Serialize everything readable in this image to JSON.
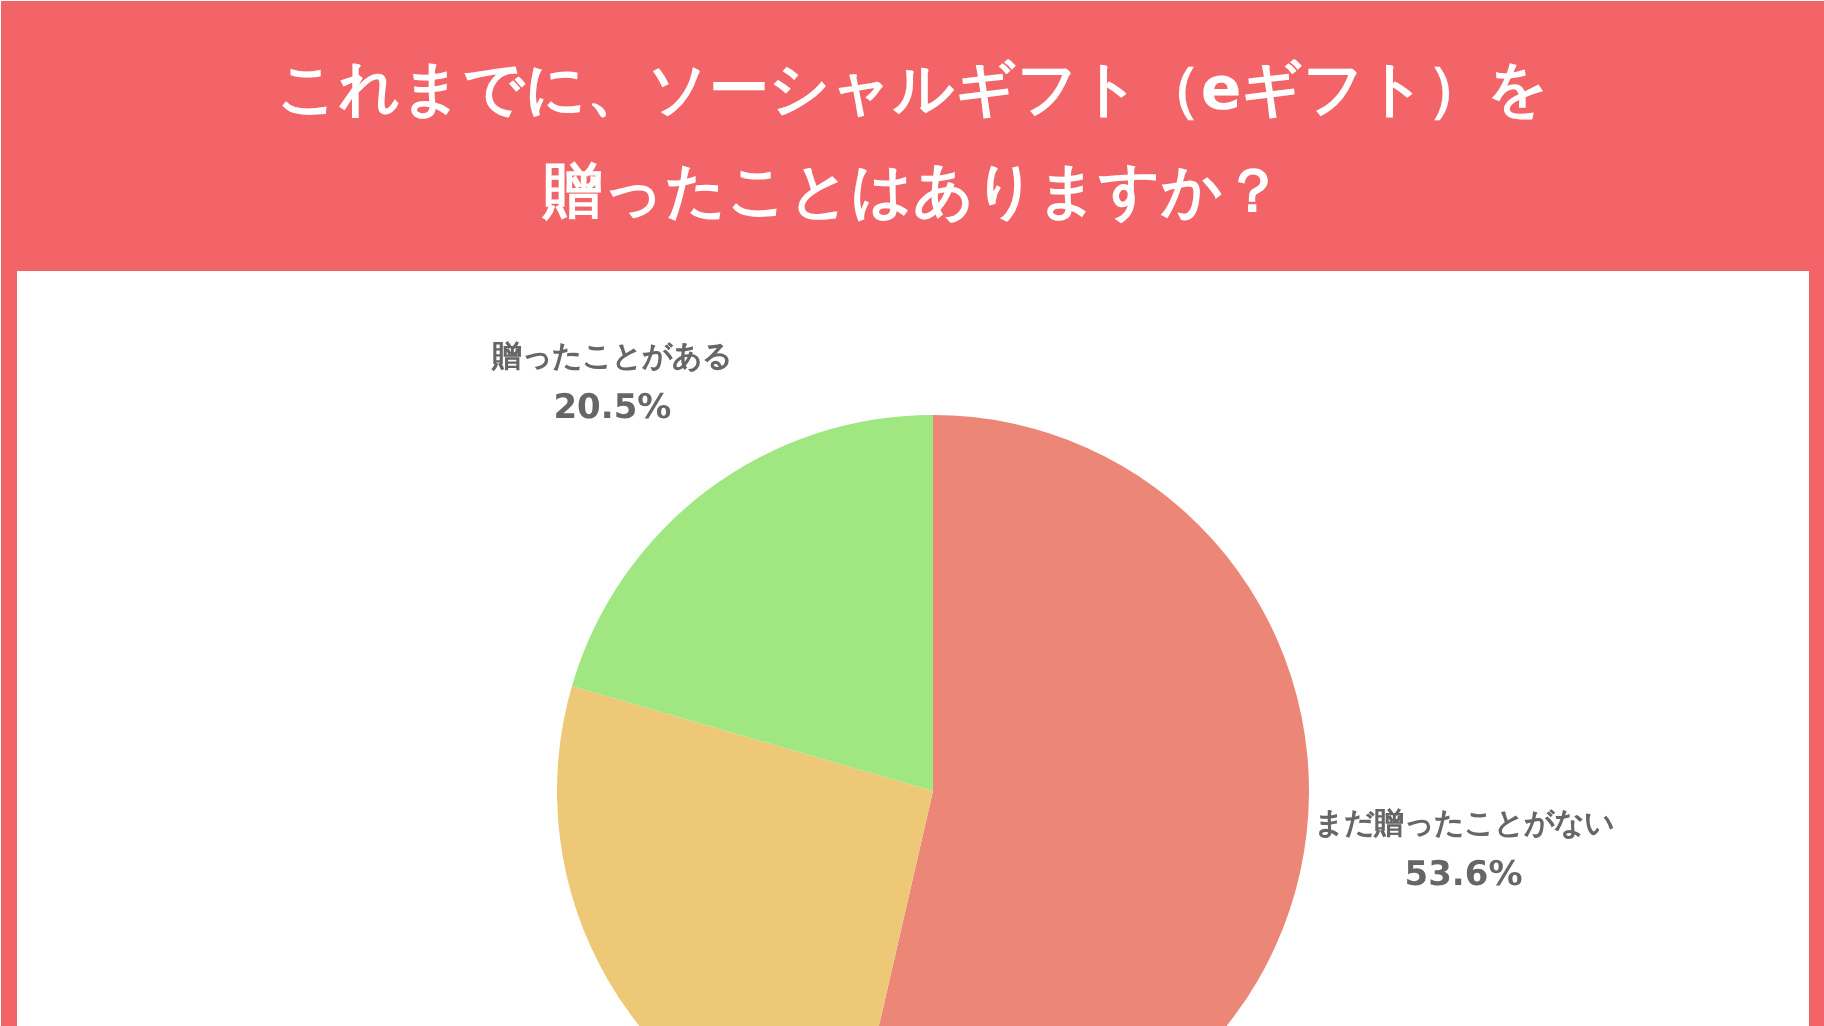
{
  "chart_data": {
    "type": "pie",
    "title": "これまでに、ソーシャルギフト（eギフト）を贈ったことはありますか？",
    "categories": [
      "まだ贈ったことがない",
      null,
      "贈ったことがある"
    ],
    "values": [
      53.6,
      25.9,
      20.5
    ],
    "colors": [
      "#ec8677",
      "#edc877",
      "#a0e681"
    ],
    "value_labels": [
      "53.6%",
      null,
      "20.5%"
    ]
  }
}
